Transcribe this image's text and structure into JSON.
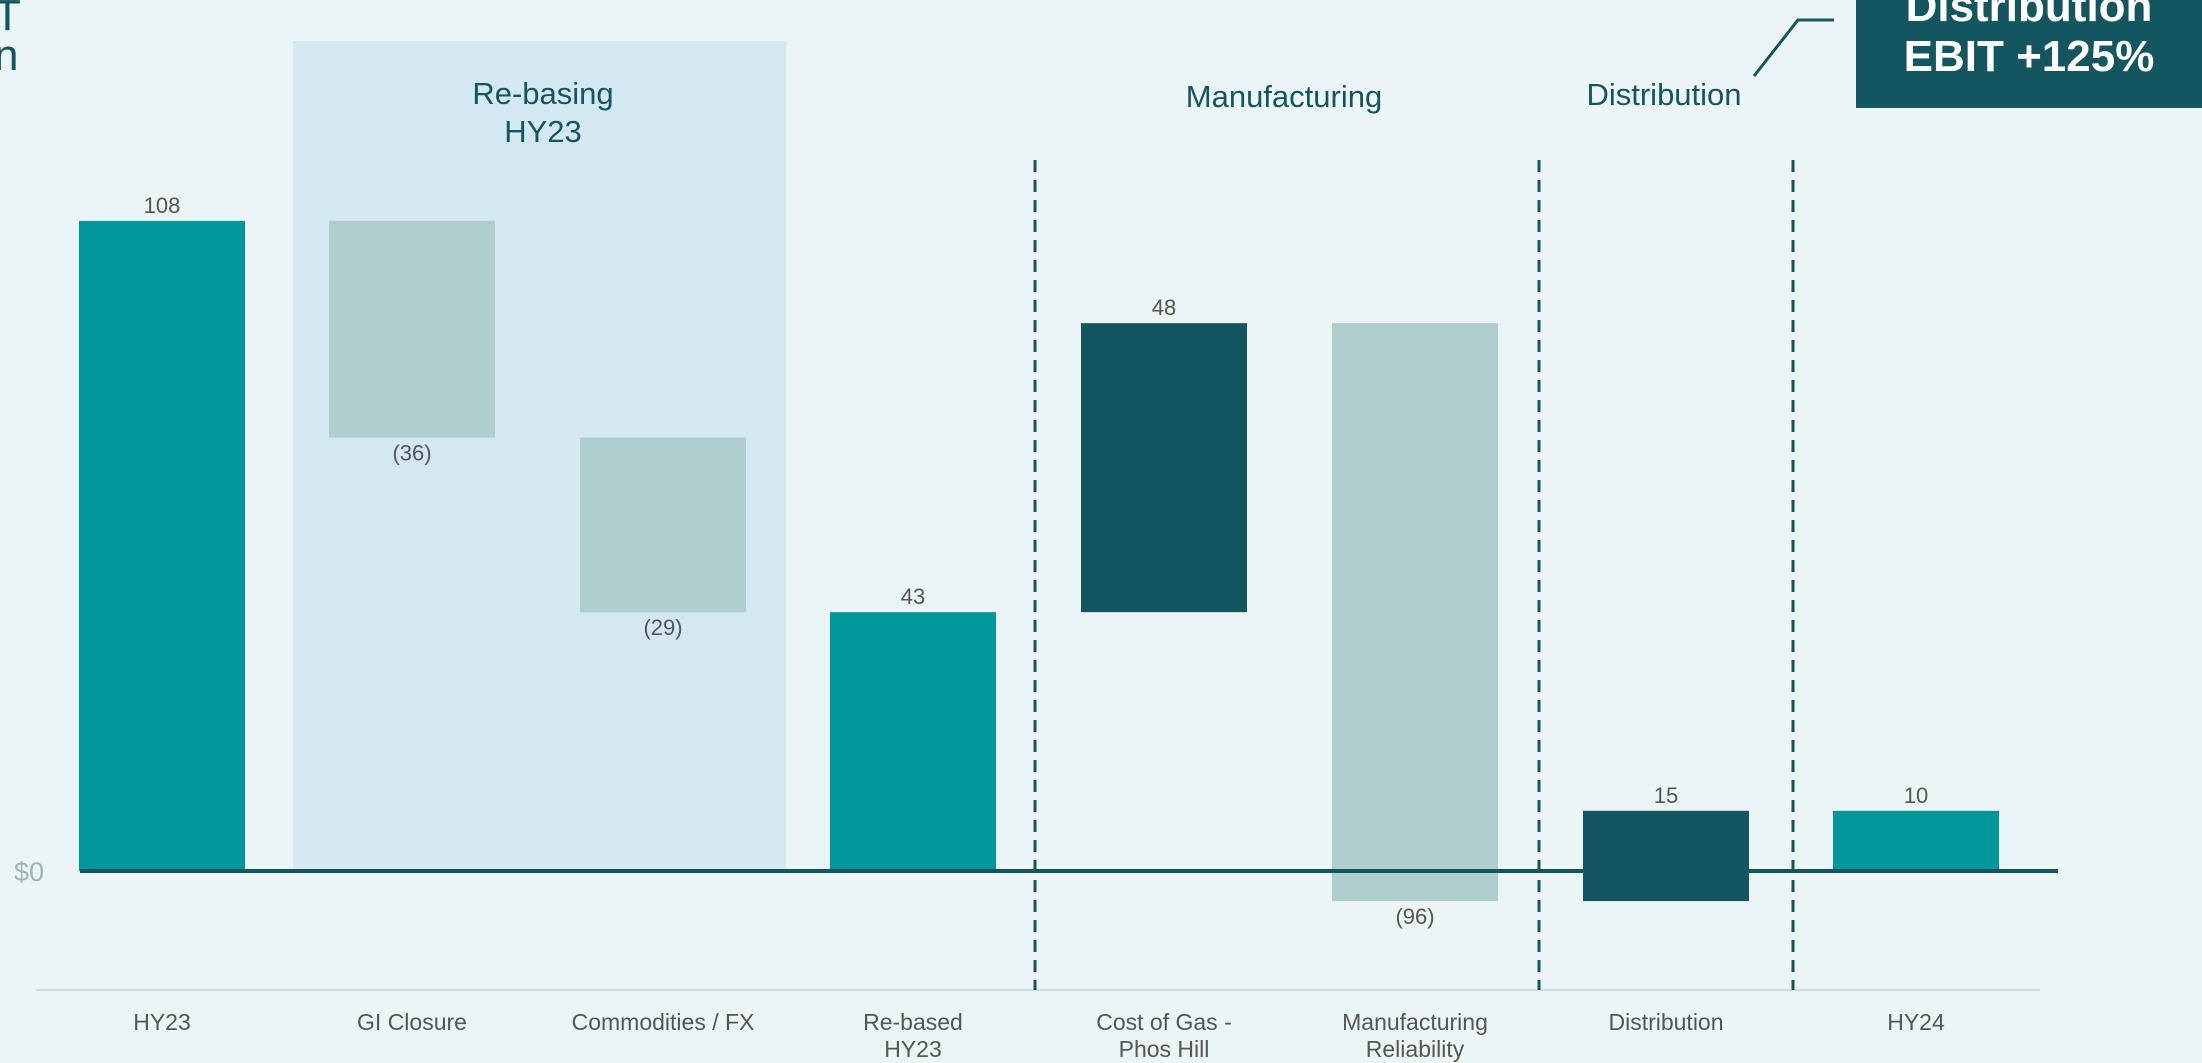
{
  "truncated_title": {
    "line1": "T",
    "line2": "n"
  },
  "callout": {
    "line1": "Distribution",
    "line2": "EBIT +125%"
  },
  "chart_data": {
    "type": "bar",
    "subtype": "waterfall",
    "categories": [
      [
        "HY23"
      ],
      [
        "GI Closure"
      ],
      [
        "Commodities / FX"
      ],
      [
        "Re-based",
        "HY23"
      ],
      [
        "Cost of Gas -",
        "Phos Hill"
      ],
      [
        "Manufacturing",
        "Reliability"
      ],
      [
        "Distribution"
      ],
      [
        "HY24"
      ]
    ],
    "bars": [
      {
        "kind": "total",
        "start": 0,
        "end": 108,
        "label": "108",
        "label_pos": "top"
      },
      {
        "kind": "decrease",
        "start": 108,
        "end": 72,
        "label": "(36)",
        "label_pos": "bottom"
      },
      {
        "kind": "decrease",
        "start": 72,
        "end": 43,
        "label": "(29)",
        "label_pos": "bottom"
      },
      {
        "kind": "total",
        "start": 0,
        "end": 43,
        "label": "43",
        "label_pos": "top"
      },
      {
        "kind": "increase",
        "start": 43,
        "end": 91,
        "label": "48",
        "label_pos": "top"
      },
      {
        "kind": "decrease",
        "start": 91,
        "end": -5,
        "label": "(96)",
        "label_pos": "bottom"
      },
      {
        "kind": "increase",
        "start": -5,
        "end": 10,
        "label": "15",
        "label_pos": "top"
      },
      {
        "kind": "total",
        "start": 0,
        "end": 10,
        "label": "10",
        "label_pos": "top"
      }
    ],
    "y_zero_label": "$0",
    "groups": [
      {
        "label": [
          "Re-basing",
          "HY23"
        ],
        "highlighted": true
      },
      {
        "label": [
          "Manufacturing"
        ],
        "highlighted": false
      },
      {
        "label": [
          "Distribution"
        ],
        "highlighted": false
      }
    ],
    "colors": {
      "total": "#00979c",
      "decrease": "#aecfce",
      "increase": "#135660",
      "highlight": "#d3e8f0",
      "axis": "#135660"
    }
  }
}
